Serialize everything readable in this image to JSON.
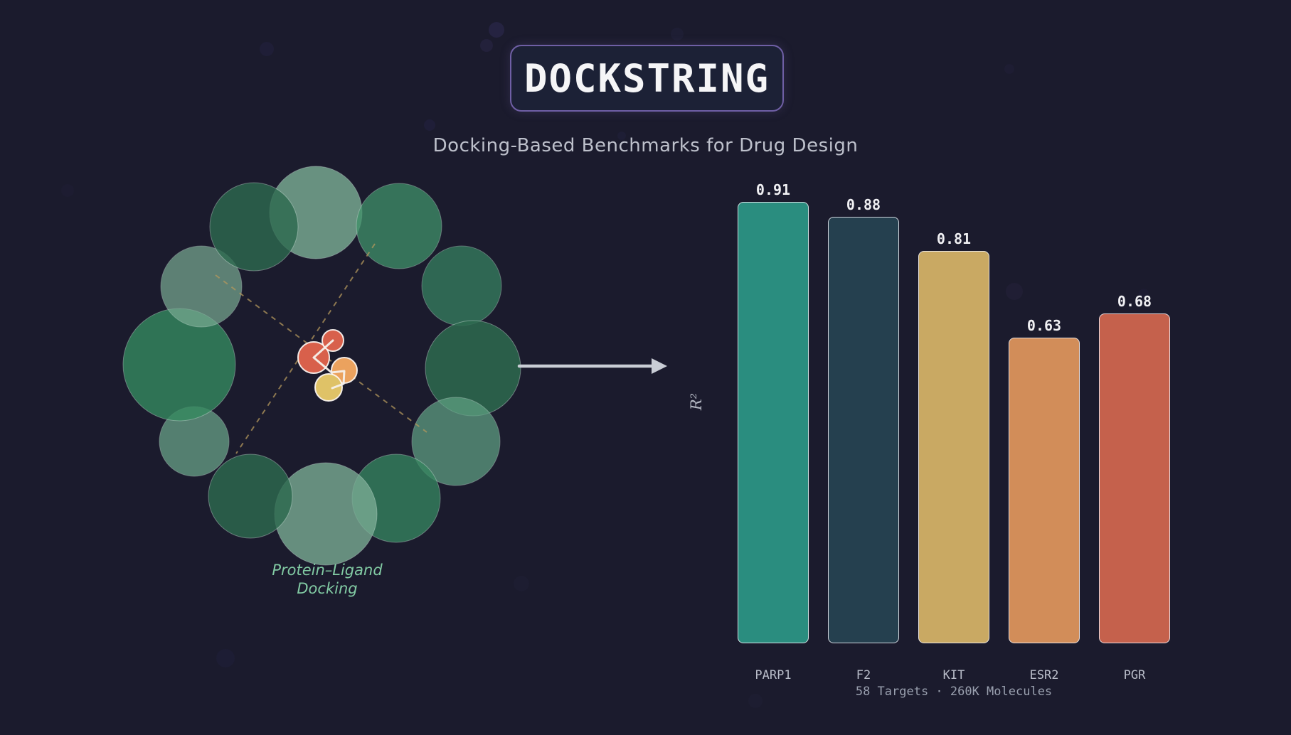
{
  "header": {
    "title": "DOCKSTRING",
    "subtitle": "Docking-Based Benchmarks for Drug Design"
  },
  "illustration": {
    "label_line1": "Protein–Ligand",
    "label_line2": "Docking"
  },
  "chart_data": {
    "type": "bar",
    "categories": [
      "PARP1",
      "F2",
      "KIT",
      "ESR2",
      "PGR"
    ],
    "values": [
      0.91,
      0.88,
      0.81,
      0.63,
      0.68
    ],
    "value_labels": [
      "0.91",
      "0.88",
      "0.81",
      "0.63",
      "0.68"
    ],
    "bar_colors": [
      "#2a8d7f",
      "#25404f",
      "#c9a963",
      "#d28d59",
      "#c5614c"
    ],
    "ylabel": "R²",
    "xlabel": "",
    "ylim": [
      0,
      1
    ],
    "grid": false,
    "legend": false,
    "footer": "58 Targets · 260K Molecules"
  },
  "colors": {
    "background": "#1b1b2d",
    "title_box_border": "#6f5fa5",
    "arrow": "#c9cdd5",
    "dashed_line": "#b3975c",
    "protein_greens": [
      "#2d6a4f",
      "#35855f",
      "#3f9169",
      "#6aa68a",
      "#79ab93"
    ],
    "ligand_red": "#d8604b",
    "ligand_orange": "#eba25e",
    "ligand_yellow": "#dfc267"
  }
}
